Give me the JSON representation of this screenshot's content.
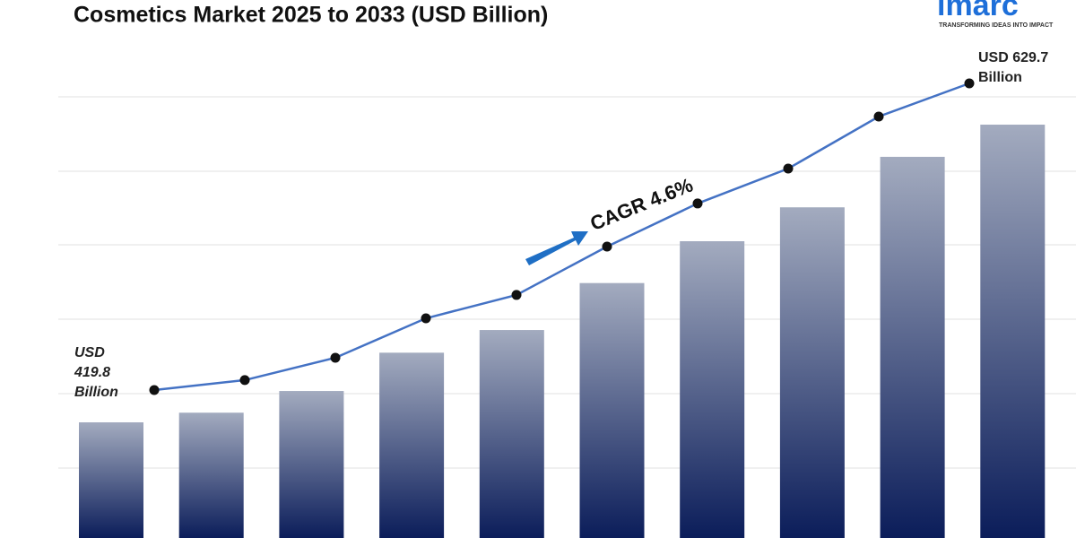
{
  "chart_data": {
    "type": "bar",
    "title": "Cosmetics Market 2025 to 2033 (USD Billion)",
    "categories": [
      null,
      null,
      null,
      null,
      null,
      null,
      null,
      null,
      null,
      null
    ],
    "values": [
      419.8,
      426.6,
      441.9,
      468.9,
      484.9,
      518.0,
      547.5,
      571.4,
      607.0,
      629.7
    ],
    "value_labels": [
      "USD 419.8 Billion",
      null,
      null,
      null,
      null,
      null,
      null,
      null,
      null,
      "USD 629.7 Billion"
    ],
    "line_color": "#4472c4",
    "annotation": "CAGR  4.6%",
    "logo": {
      "name": "imarc",
      "tagline": "TRANSFORMING IDEAS INTO IMPACT"
    }
  }
}
